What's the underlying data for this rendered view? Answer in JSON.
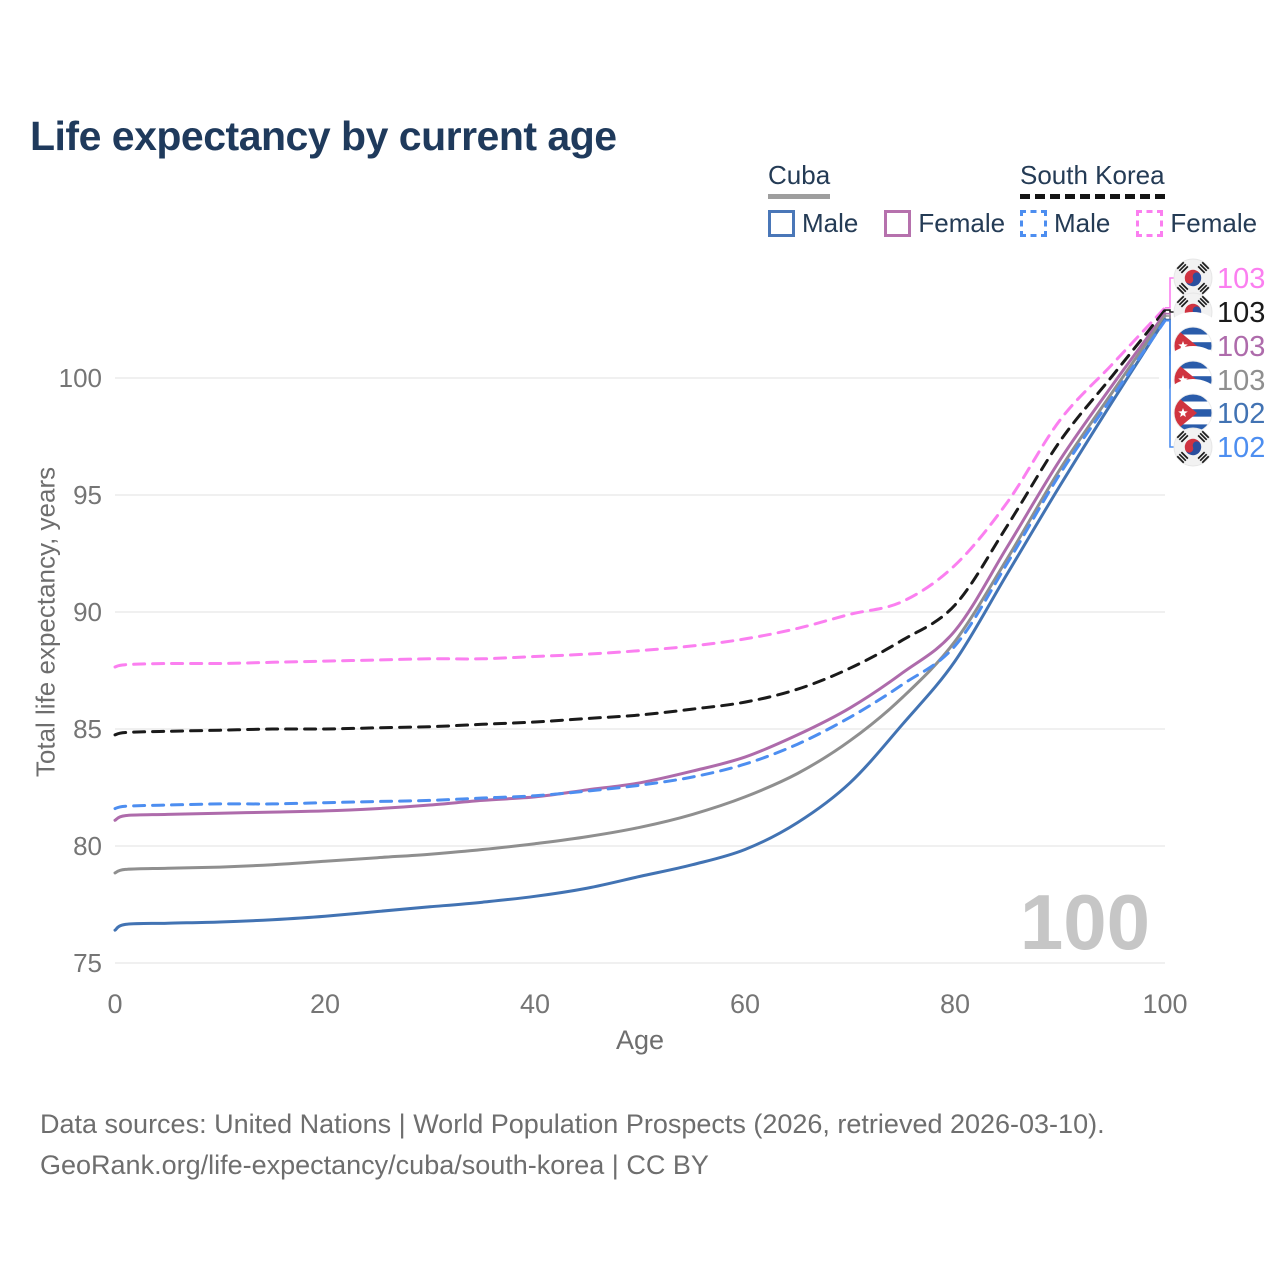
{
  "title": "Life expectancy by current age",
  "legend": {
    "groups": [
      {
        "label": "Cuba",
        "line_style": "solid",
        "underline_color": "#9e9e9e",
        "items": [
          {
            "label": "Male",
            "color": "#4a77b8",
            "dashed": false
          },
          {
            "label": "Female",
            "color": "#b671ad",
            "dashed": false
          }
        ]
      },
      {
        "label": "South Korea",
        "line_style": "dashed",
        "underline_color": "#141414",
        "items": [
          {
            "label": "Male",
            "color": "#4d8ef0",
            "dashed": true
          },
          {
            "label": "Female",
            "color": "#fb7ff0",
            "dashed": true
          }
        ]
      }
    ]
  },
  "watermark_current_age": "100",
  "chart_data": {
    "type": "line",
    "title": "Life expectancy by current age",
    "xlabel": "Age",
    "ylabel": "Total life expectancy, years",
    "xlim": [
      0,
      100
    ],
    "ylim": [
      75,
      103.5
    ],
    "xticks": [
      0,
      20,
      40,
      60,
      80,
      100
    ],
    "yticks": [
      75,
      80,
      85,
      90,
      95,
      100
    ],
    "grid": "horizontal",
    "x": [
      0,
      1,
      5,
      10,
      15,
      20,
      25,
      30,
      35,
      40,
      45,
      50,
      55,
      60,
      65,
      70,
      75,
      80,
      85,
      90,
      95,
      100
    ],
    "series": [
      {
        "name": "South Korea Female",
        "country": "South Korea",
        "sex": "Female",
        "flag": "kr",
        "color": "#fb7ff0",
        "dash": true,
        "end_label": "103",
        "values": [
          87.65,
          87.75,
          87.8,
          87.8,
          87.85,
          87.9,
          87.95,
          88.0,
          88.0,
          88.1,
          88.2,
          88.35,
          88.55,
          88.85,
          89.3,
          89.9,
          90.45,
          92.0,
          94.7,
          98.2,
          100.6,
          103.0
        ]
      },
      {
        "name": "South Korea Total",
        "country": "South Korea",
        "sex": "Both",
        "flag": "kr",
        "color": "#1a1a1a",
        "dash": true,
        "end_label": "103",
        "values": [
          84.75,
          84.85,
          84.9,
          84.95,
          85.0,
          85.0,
          85.05,
          85.1,
          85.2,
          85.3,
          85.45,
          85.6,
          85.85,
          86.15,
          86.7,
          87.6,
          88.8,
          90.3,
          93.7,
          97.3,
          100.1,
          102.9
        ]
      },
      {
        "name": "Cuba Female",
        "country": "Cuba",
        "sex": "Female",
        "flag": "cu",
        "color": "#ae6bab",
        "dash": false,
        "end_label": "103",
        "values": [
          81.1,
          81.3,
          81.35,
          81.4,
          81.45,
          81.5,
          81.6,
          81.75,
          81.95,
          82.1,
          82.4,
          82.7,
          83.2,
          83.8,
          84.75,
          85.9,
          87.4,
          89.2,
          92.8,
          96.5,
          99.7,
          102.75
        ]
      },
      {
        "name": "Cuba Total",
        "country": "Cuba",
        "sex": "Both",
        "flag": "cu",
        "color": "#8f8f8f",
        "dash": false,
        "end_label": "103",
        "values": [
          78.85,
          79.0,
          79.05,
          79.1,
          79.2,
          79.35,
          79.5,
          79.65,
          79.85,
          80.1,
          80.4,
          80.8,
          81.35,
          82.1,
          83.1,
          84.5,
          86.35,
          88.75,
          92.3,
          96.1,
          99.4,
          102.65
        ]
      },
      {
        "name": "Cuba Male",
        "country": "Cuba",
        "sex": "Male",
        "flag": "cu",
        "color": "#4273b3",
        "dash": false,
        "end_label": "102",
        "values": [
          76.4,
          76.65,
          76.7,
          76.75,
          76.85,
          77.0,
          77.2,
          77.4,
          77.6,
          77.85,
          78.2,
          78.7,
          79.2,
          79.85,
          81.0,
          82.7,
          85.2,
          87.9,
          91.65,
          95.4,
          99.0,
          102.5
        ]
      },
      {
        "name": "South Korea Male",
        "country": "South Korea",
        "sex": "Male",
        "flag": "kr",
        "color": "#4d8ef0",
        "dash": true,
        "end_label": "102",
        "values": [
          81.6,
          81.7,
          81.75,
          81.8,
          81.8,
          81.85,
          81.9,
          81.95,
          82.05,
          82.15,
          82.35,
          82.6,
          82.95,
          83.5,
          84.35,
          85.5,
          86.9,
          88.55,
          92.1,
          95.9,
          99.2,
          102.45
        ]
      }
    ]
  },
  "footer": {
    "line1": "Data sources: United Nations | World Population Prospects (2026, retrieved 2026-03-10).",
    "line2": "GeoRank.org/life-expectancy/cuba/south-korea | CC BY"
  }
}
